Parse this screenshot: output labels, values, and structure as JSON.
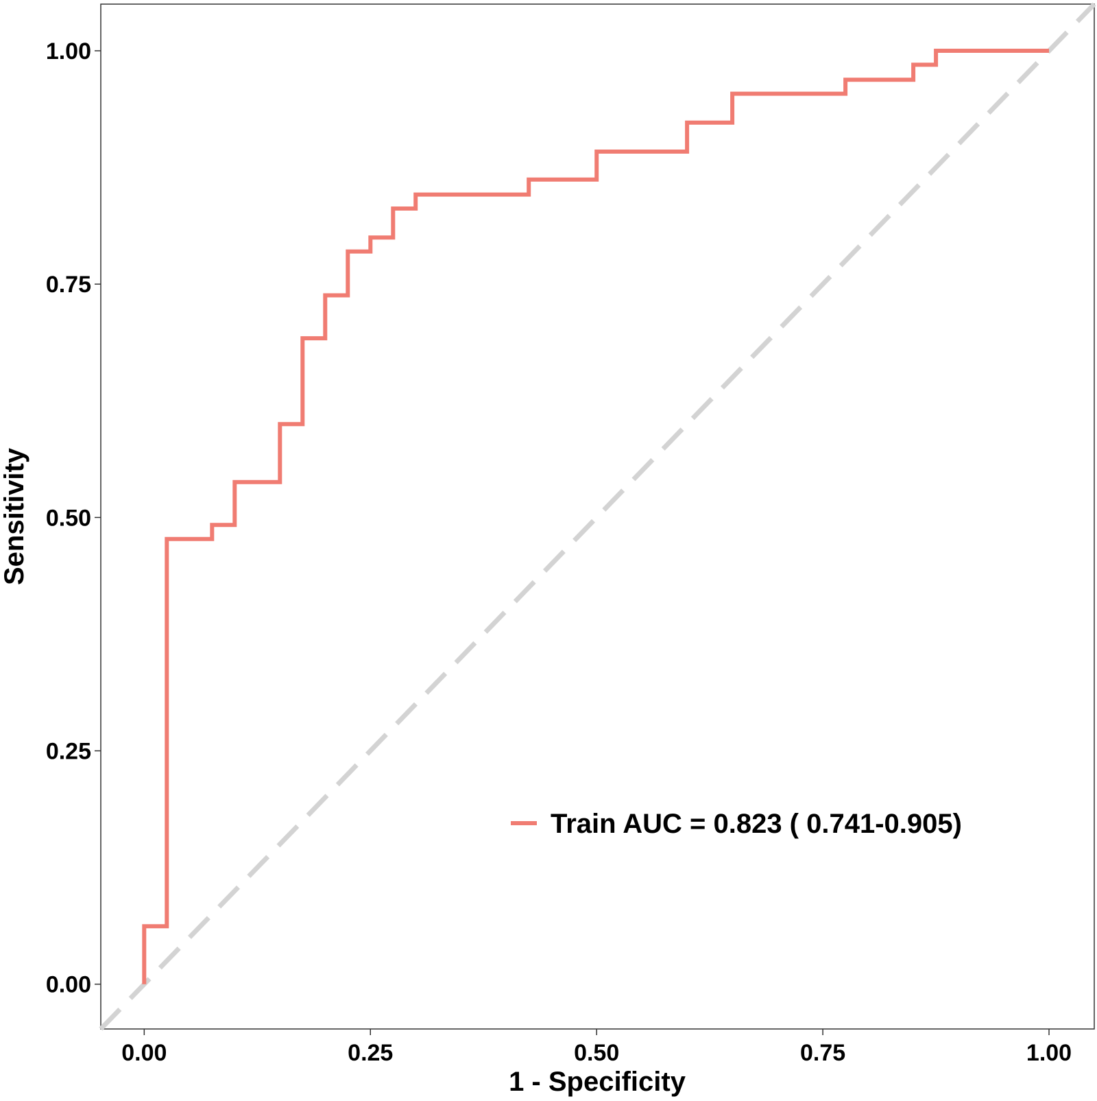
{
  "chart_data": {
    "type": "line",
    "title": "",
    "xlabel": "1 - Specificity",
    "ylabel": "Sensitivity",
    "xlim": [
      -0.048,
      1.05
    ],
    "ylim": [
      -0.048,
      1.05
    ],
    "x_ticks": [
      0.0,
      0.25,
      0.5,
      0.75,
      1.0
    ],
    "x_tick_labels": [
      "0.00",
      "0.25",
      "0.50",
      "0.75",
      "1.00"
    ],
    "y_ticks": [
      0.0,
      0.25,
      0.5,
      0.75,
      1.0
    ],
    "y_tick_labels": [
      "0.00",
      "0.25",
      "0.50",
      "0.75",
      "1.00"
    ],
    "grid": false,
    "legend_position": "bottom-right",
    "reference_line": {
      "type": "diagonal",
      "style": "dashed",
      "color": "#d3d3d3"
    },
    "series": [
      {
        "name": "Train AUC = 0.823 ( 0.741-0.905)",
        "color": "#f07c72",
        "style": "step",
        "x": [
          0.0,
          0.0,
          0.025,
          0.025,
          0.075,
          0.075,
          0.1,
          0.1,
          0.15,
          0.15,
          0.175,
          0.175,
          0.2,
          0.2,
          0.225,
          0.225,
          0.25,
          0.25,
          0.275,
          0.275,
          0.3,
          0.3,
          0.425,
          0.425,
          0.5,
          0.5,
          0.6,
          0.6,
          0.65,
          0.65,
          0.775,
          0.775,
          0.85,
          0.85,
          0.875,
          0.875,
          1.0
        ],
        "y": [
          0.0,
          0.062,
          0.062,
          0.477,
          0.477,
          0.492,
          0.492,
          0.538,
          0.538,
          0.6,
          0.6,
          0.692,
          0.692,
          0.738,
          0.738,
          0.785,
          0.785,
          0.8,
          0.8,
          0.831,
          0.831,
          0.846,
          0.846,
          0.862,
          0.862,
          0.892,
          0.892,
          0.923,
          0.923,
          0.954,
          0.954,
          0.969,
          0.969,
          0.985,
          0.985,
          1.0,
          1.0
        ]
      }
    ]
  }
}
